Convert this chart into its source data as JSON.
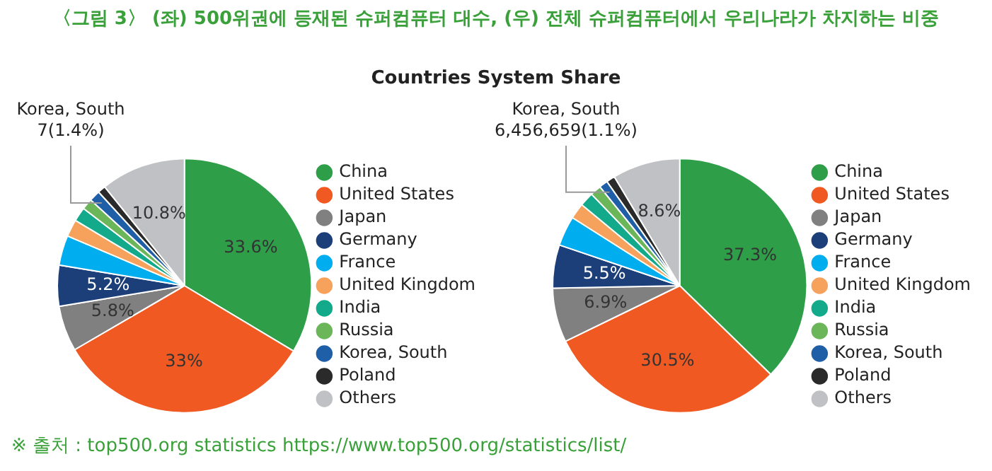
{
  "chart_data": [
    {
      "type": "pie",
      "title": "〈그림 3〉 (좌) 500위권에 등재된 슈퍼컴퓨터 대수, (우) 전체 슈퍼컴퓨터에서 우리나라가 차지하는 비중",
      "subtitle": "Countries System Share",
      "annotations": [
        "※ 출처 : top500.org statistics https://www.top500.org/statistics/list/"
      ],
      "categories": [
        "China",
        "United States",
        "Japan",
        "Germany",
        "France",
        "United Kingdom",
        "India",
        "Russia",
        "Korea, South",
        "Poland",
        "Others"
      ],
      "values": [
        33.6,
        33,
        5.8,
        5.2,
        3.8,
        2.2,
        1.8,
        1.4,
        1.4,
        1.0,
        10.8
      ],
      "colors": [
        "#2e9e48",
        "#f05a22",
        "#808080",
        "#1c3f7a",
        "#00aeef",
        "#f7a25c",
        "#13a98b",
        "#6cb65a",
        "#1f5fa8",
        "#2a2a2a",
        "#bfc1c4"
      ],
      "value_labels": [
        "33.6%",
        "33%",
        "5.8%",
        "5.2%",
        null,
        null,
        null,
        null,
        "7(1.4%)",
        null,
        "10.8%"
      ],
      "legend": "right"
    },
    {
      "type": "pie",
      "categories": [
        "China",
        "United States",
        "Japan",
        "Germany",
        "France",
        "United Kingdom",
        "India",
        "Russia",
        "Korea, South",
        "Poland",
        "Others"
      ],
      "values": [
        37.3,
        30.5,
        6.9,
        5.5,
        3.8,
        2.0,
        1.8,
        1.4,
        1.1,
        1.1,
        8.6
      ],
      "colors": [
        "#2e9e48",
        "#f05a22",
        "#808080",
        "#1c3f7a",
        "#00aeef",
        "#f7a25c",
        "#13a98b",
        "#6cb65a",
        "#1f5fa8",
        "#2a2a2a",
        "#bfc1c4"
      ],
      "value_labels": [
        "37.3%",
        "30.5%",
        "6.9%",
        "5.5%",
        null,
        null,
        null,
        null,
        "6,456,659(1.1%)",
        null,
        "8.6%"
      ],
      "legend": "right"
    }
  ]
}
